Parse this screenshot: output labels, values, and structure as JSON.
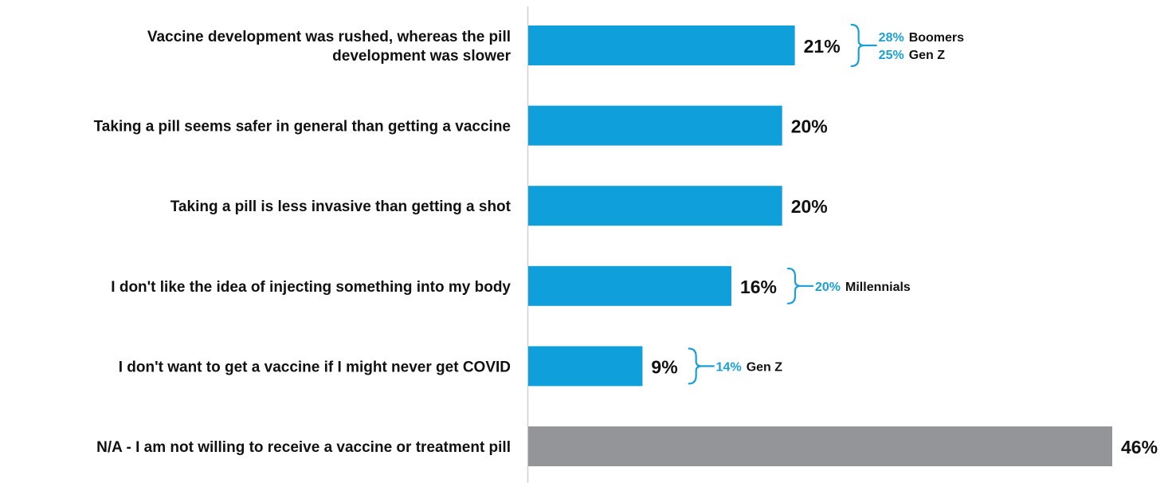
{
  "chart_data": {
    "type": "bar",
    "orientation": "horizontal",
    "categories": [
      [
        "Vaccine development was rushed, whereas the pill",
        "development was slower"
      ],
      [
        "Taking a pill seems safer in general than getting a vaccine"
      ],
      [
        "Taking a pill is less invasive than getting a shot"
      ],
      [
        "I don't like the idea of injecting something into my body"
      ],
      [
        "I don't want to get a vaccine if I might never get COVID"
      ],
      [
        "N/A - I am not willing to receive a vaccine or treatment pill"
      ]
    ],
    "values": [
      21,
      20,
      20,
      16,
      9,
      46
    ],
    "value_labels": [
      "21%",
      "20%",
      "20%",
      "16%",
      "9%",
      "46%"
    ],
    "bar_colors": [
      "#0f9fdb",
      "#0f9fdb",
      "#0f9fdb",
      "#0f9fdb",
      "#0f9fdb",
      "#939598"
    ],
    "xlim": [
      0,
      46
    ],
    "grid": false,
    "annotations": [
      {
        "bar": 0,
        "items": [
          {
            "pct": "28%",
            "group": "Boomers"
          },
          {
            "pct": "25%",
            "group": "Gen Z"
          }
        ]
      },
      {
        "bar": 3,
        "items": [
          {
            "pct": "20%",
            "group": "Millennials"
          }
        ]
      },
      {
        "bar": 4,
        "items": [
          {
            "pct": "14%",
            "group": "Gen Z"
          }
        ]
      }
    ],
    "colors": {
      "accent": "#0f9fdb",
      "na_bar": "#939598",
      "annotation_text": "#1a9fd9",
      "axis_line": "#d0d0d0"
    }
  }
}
